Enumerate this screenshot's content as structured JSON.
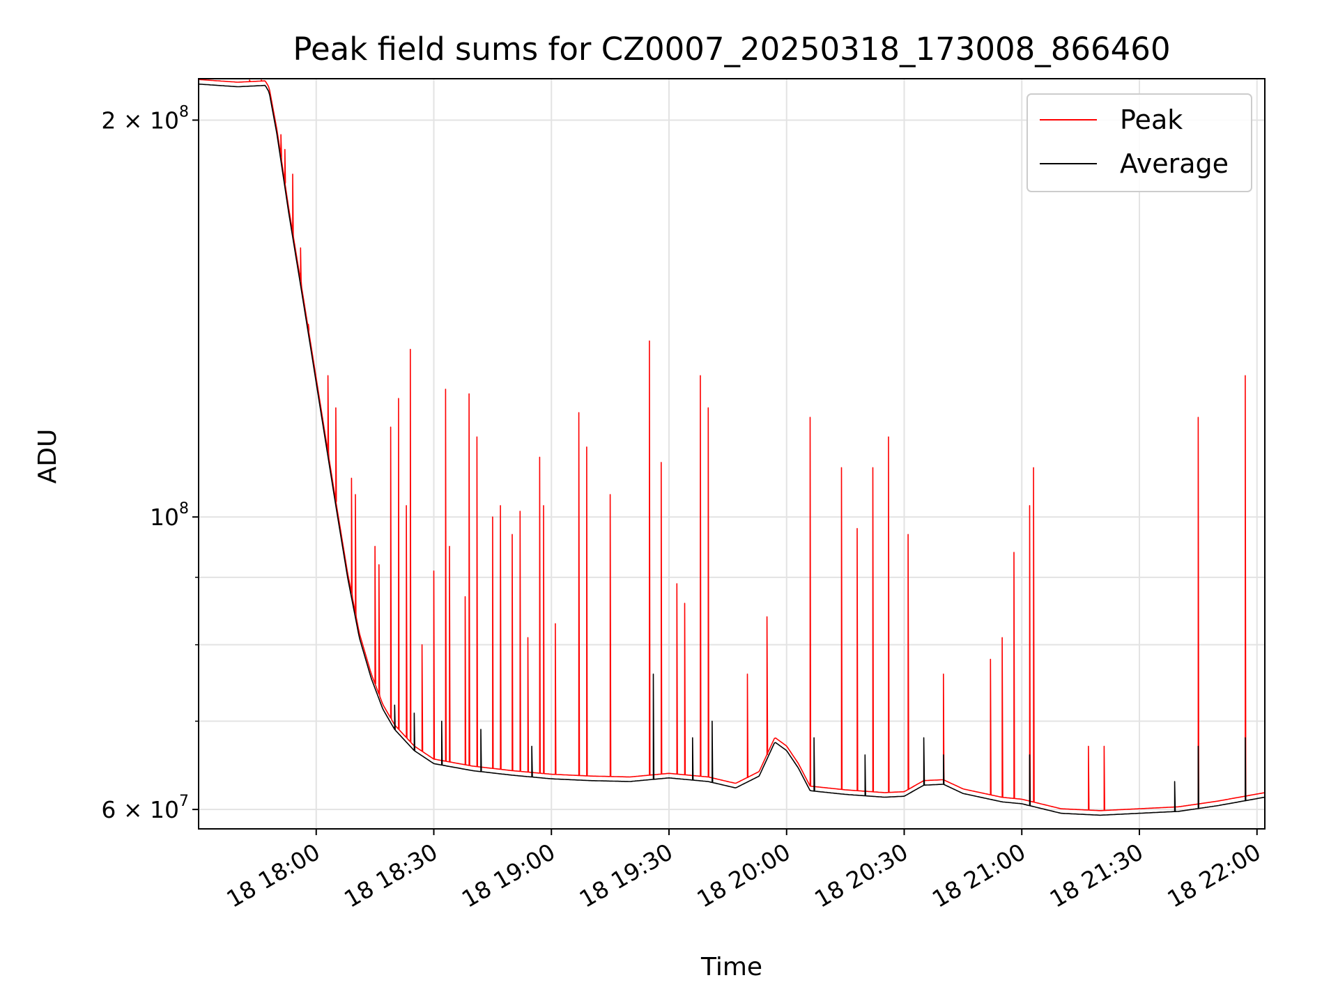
{
  "chart_data": {
    "type": "line",
    "title": "Peak field sums for CZ0007_20250318_173008_866460",
    "xlabel": "Time",
    "ylabel": "ADU",
    "x_axis": {
      "type": "time",
      "date": "2025-03-18",
      "range": [
        "17:30",
        "22:02"
      ],
      "tick_values": [
        "18:00",
        "18:30",
        "19:00",
        "19:30",
        "20:00",
        "20:30",
        "21:00",
        "21:30",
        "22:00"
      ],
      "tick_labels": [
        "18 18:00",
        "18 18:30",
        "18 19:00",
        "18 19:30",
        "18 20:00",
        "18 20:30",
        "18 21:00",
        "18 21:30",
        "18 22:00"
      ]
    },
    "y_axis": {
      "scale": "log",
      "range": [
        58000000,
        215000000
      ],
      "major_ticks": [
        {
          "value": 60000000,
          "mantissa": "6",
          "exponent": "7"
        },
        {
          "value": 100000000,
          "mantissa": "",
          "exponent": "8"
        },
        {
          "value": 200000000,
          "mantissa": "2",
          "exponent": "8"
        }
      ],
      "minor_ticks": [
        70000000,
        80000000,
        90000000
      ]
    },
    "grid": true,
    "legend": {
      "position": "top-right",
      "entries": [
        {
          "name": "Peak",
          "color": "#ff0000"
        },
        {
          "name": "Average",
          "color": "#000000"
        }
      ]
    },
    "series": [
      {
        "name": "Average",
        "color": "#000000",
        "points": [
          [
            "17:30",
            213000000
          ],
          [
            "17:40",
            212000000
          ],
          [
            "17:47",
            212500000
          ],
          [
            "17:48",
            210000000
          ],
          [
            "17:50",
            195000000
          ],
          [
            "17:53",
            170000000
          ],
          [
            "17:56",
            150000000
          ],
          [
            "17:59",
            132000000
          ],
          [
            "18:02",
            116000000
          ],
          [
            "18:05",
            102000000
          ],
          [
            "18:08",
            90000000
          ],
          [
            "18:11",
            81000000
          ],
          [
            "18:14",
            75500000
          ],
          [
            "18:17",
            71500000
          ],
          [
            "18:20",
            69000000
          ],
          [
            "18:25",
            66500000
          ],
          [
            "18:30",
            65000000
          ],
          [
            "18:40",
            64200000
          ],
          [
            "18:50",
            63700000
          ],
          [
            "19:00",
            63300000
          ],
          [
            "19:10",
            63100000
          ],
          [
            "19:20",
            63000000
          ],
          [
            "19:30",
            63400000
          ],
          [
            "19:40",
            63000000
          ],
          [
            "19:47",
            62300000
          ],
          [
            "19:53",
            63600000
          ],
          [
            "19:57",
            67500000
          ],
          [
            "20:00",
            66500000
          ],
          [
            "20:03",
            64500000
          ],
          [
            "20:06",
            62000000
          ],
          [
            "20:15",
            61600000
          ],
          [
            "20:25",
            61300000
          ],
          [
            "20:30",
            61400000
          ],
          [
            "20:35",
            62600000
          ],
          [
            "20:40",
            62700000
          ],
          [
            "20:45",
            61700000
          ],
          [
            "20:55",
            60800000
          ],
          [
            "21:00",
            60600000
          ],
          [
            "21:05",
            60100000
          ],
          [
            "21:10",
            59600000
          ],
          [
            "21:20",
            59400000
          ],
          [
            "21:30",
            59600000
          ],
          [
            "21:40",
            59800000
          ],
          [
            "21:50",
            60400000
          ],
          [
            "22:02",
            61300000
          ]
        ],
        "spikes": [
          [
            "18:20",
            72000000
          ],
          [
            "18:25",
            71000000
          ],
          [
            "18:32",
            70000000
          ],
          [
            "18:42",
            69000000
          ],
          [
            "18:55",
            67000000
          ],
          [
            "19:26",
            76000000
          ],
          [
            "19:36",
            68000000
          ],
          [
            "19:41",
            70000000
          ],
          [
            "20:07",
            68000000
          ],
          [
            "20:20",
            66000000
          ],
          [
            "20:35",
            68000000
          ],
          [
            "20:40",
            66000000
          ],
          [
            "21:02",
            66000000
          ],
          [
            "21:39",
            63000000
          ],
          [
            "21:45",
            67000000
          ],
          [
            "21:57",
            68000000
          ]
        ]
      },
      {
        "name": "Peak",
        "color": "#ff0000",
        "baseline_offset": 1.008,
        "spikes": [
          [
            "17:43",
            214500000
          ],
          [
            "17:46",
            214500000
          ],
          [
            "17:51",
            195000000
          ],
          [
            "17:52",
            190000000
          ],
          [
            "17:54",
            182000000
          ],
          [
            "17:56",
            160000000
          ],
          [
            "17:58",
            140000000
          ],
          [
            "18:03",
            128000000
          ],
          [
            "18:05",
            121000000
          ],
          [
            "18:09",
            107000000
          ],
          [
            "18:10",
            104000000
          ],
          [
            "18:15",
            95000000
          ],
          [
            "18:16",
            92000000
          ],
          [
            "18:19",
            117000000
          ],
          [
            "18:21",
            123000000
          ],
          [
            "18:23",
            102000000
          ],
          [
            "18:24",
            134000000
          ],
          [
            "18:27",
            80000000
          ],
          [
            "18:30",
            91000000
          ],
          [
            "18:33",
            125000000
          ],
          [
            "18:34",
            95000000
          ],
          [
            "18:38",
            87000000
          ],
          [
            "18:39",
            124000000
          ],
          [
            "18:41",
            115000000
          ],
          [
            "18:45",
            100000000
          ],
          [
            "18:47",
            102000000
          ],
          [
            "18:50",
            97000000
          ],
          [
            "18:52",
            101000000
          ],
          [
            "18:54",
            81000000
          ],
          [
            "18:57",
            111000000
          ],
          [
            "18:58",
            102000000
          ],
          [
            "19:01",
            83000000
          ],
          [
            "19:07",
            120000000
          ],
          [
            "19:09",
            113000000
          ],
          [
            "19:15",
            104000000
          ],
          [
            "19:25",
            136000000
          ],
          [
            "19:28",
            110000000
          ],
          [
            "19:32",
            89000000
          ],
          [
            "19:34",
            86000000
          ],
          [
            "19:38",
            128000000
          ],
          [
            "19:40",
            121000000
          ],
          [
            "19:50",
            76000000
          ],
          [
            "19:55",
            84000000
          ],
          [
            "20:06",
            119000000
          ],
          [
            "20:14",
            109000000
          ],
          [
            "20:18",
            98000000
          ],
          [
            "20:22",
            109000000
          ],
          [
            "20:26",
            115000000
          ],
          [
            "20:31",
            97000000
          ],
          [
            "20:40",
            76000000
          ],
          [
            "20:52",
            78000000
          ],
          [
            "20:55",
            81000000
          ],
          [
            "20:58",
            94000000
          ],
          [
            "21:02",
            102000000
          ],
          [
            "21:03",
            109000000
          ],
          [
            "21:17",
            67000000
          ],
          [
            "21:21",
            67000000
          ],
          [
            "21:45",
            119000000
          ],
          [
            "21:57",
            128000000
          ]
        ]
      }
    ]
  }
}
